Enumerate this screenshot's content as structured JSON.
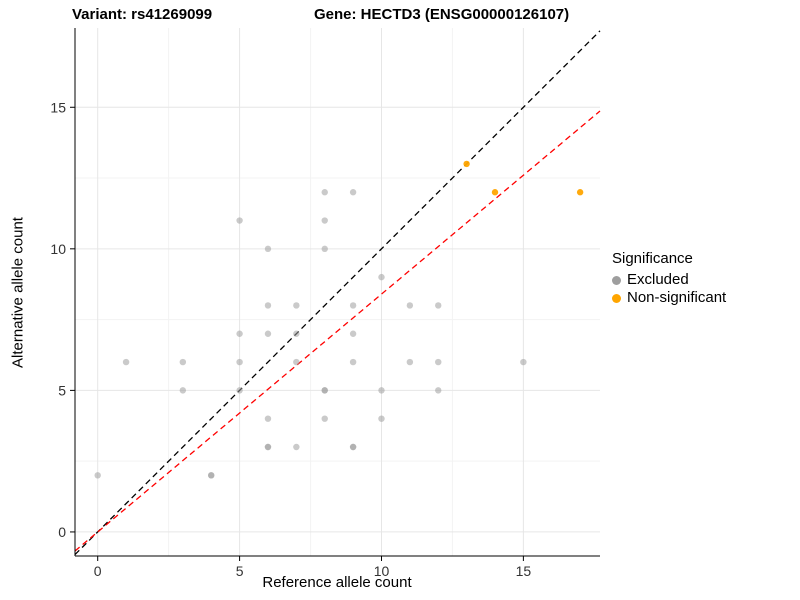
{
  "titles": {
    "left": "Variant: rs41269099",
    "right": "Gene: HECTD3 (ENSG00000126107)"
  },
  "chart_data": {
    "type": "scatter",
    "xlabel": "Reference allele count",
    "ylabel": "Alternative allele count",
    "x_ticks": [
      0,
      5,
      10,
      15
    ],
    "y_ticks": [
      0,
      5,
      10,
      15
    ],
    "x_minor_ticks": [
      2.5,
      7.5,
      12.5
    ],
    "y_minor_ticks": [
      2.5,
      7.5,
      12.5
    ],
    "xlim": [
      -0.8,
      17.7
    ],
    "ylim": [
      -0.85,
      17.8
    ],
    "grid": "on",
    "colors": {
      "excluded": "#9e9e9e",
      "non_significant": "#FFA500",
      "identity_line": "#000000",
      "fit_line": "#ff0000",
      "grid_major": "#e6e6e6",
      "grid_minor": "#f3f3f3",
      "tick_text": "#333333"
    },
    "legend": {
      "title": "Significance",
      "position": "right",
      "entries": [
        {
          "label": "Excluded",
          "color": "#9e9e9e"
        },
        {
          "label": "Non-significant",
          "color": "#FFA500"
        }
      ]
    },
    "series": [
      {
        "name": "Excluded",
        "color": "#9e9e9e",
        "opacity": 0.55,
        "points": [
          [
            0,
            2
          ],
          [
            4,
            2
          ],
          [
            4,
            2
          ],
          [
            1,
            6
          ],
          [
            3,
            6
          ],
          [
            3,
            5
          ],
          [
            5,
            11
          ],
          [
            5,
            7
          ],
          [
            5,
            6
          ],
          [
            5,
            5
          ],
          [
            6,
            10
          ],
          [
            6,
            8
          ],
          [
            6,
            7
          ],
          [
            6,
            4
          ],
          [
            6,
            3
          ],
          [
            6,
            3
          ],
          [
            7,
            8
          ],
          [
            7,
            7
          ],
          [
            7,
            6
          ],
          [
            7,
            3
          ],
          [
            8,
            12
          ],
          [
            8,
            11
          ],
          [
            8,
            10
          ],
          [
            8,
            5
          ],
          [
            8,
            5
          ],
          [
            8,
            4
          ],
          [
            9,
            12
          ],
          [
            9,
            8
          ],
          [
            9,
            7
          ],
          [
            9,
            6
          ],
          [
            9,
            3
          ],
          [
            9,
            3
          ],
          [
            10,
            9
          ],
          [
            10,
            5
          ],
          [
            10,
            4
          ],
          [
            11,
            8
          ],
          [
            11,
            6
          ],
          [
            12,
            8
          ],
          [
            12,
            6
          ],
          [
            12,
            5
          ],
          [
            15,
            6
          ]
        ]
      },
      {
        "name": "Non-significant",
        "color": "#FFA500",
        "opacity": 0.95,
        "points": [
          [
            13,
            13
          ],
          [
            14,
            12
          ],
          [
            17,
            12
          ]
        ]
      }
    ],
    "lines": [
      {
        "name": "identity-line",
        "slope": 1.0,
        "intercept": 0,
        "color": "#000000",
        "dash": "6,4"
      },
      {
        "name": "fit-line",
        "slope": 0.84,
        "intercept": 0,
        "color": "#ff0000",
        "dash": "6,4"
      }
    ]
  }
}
